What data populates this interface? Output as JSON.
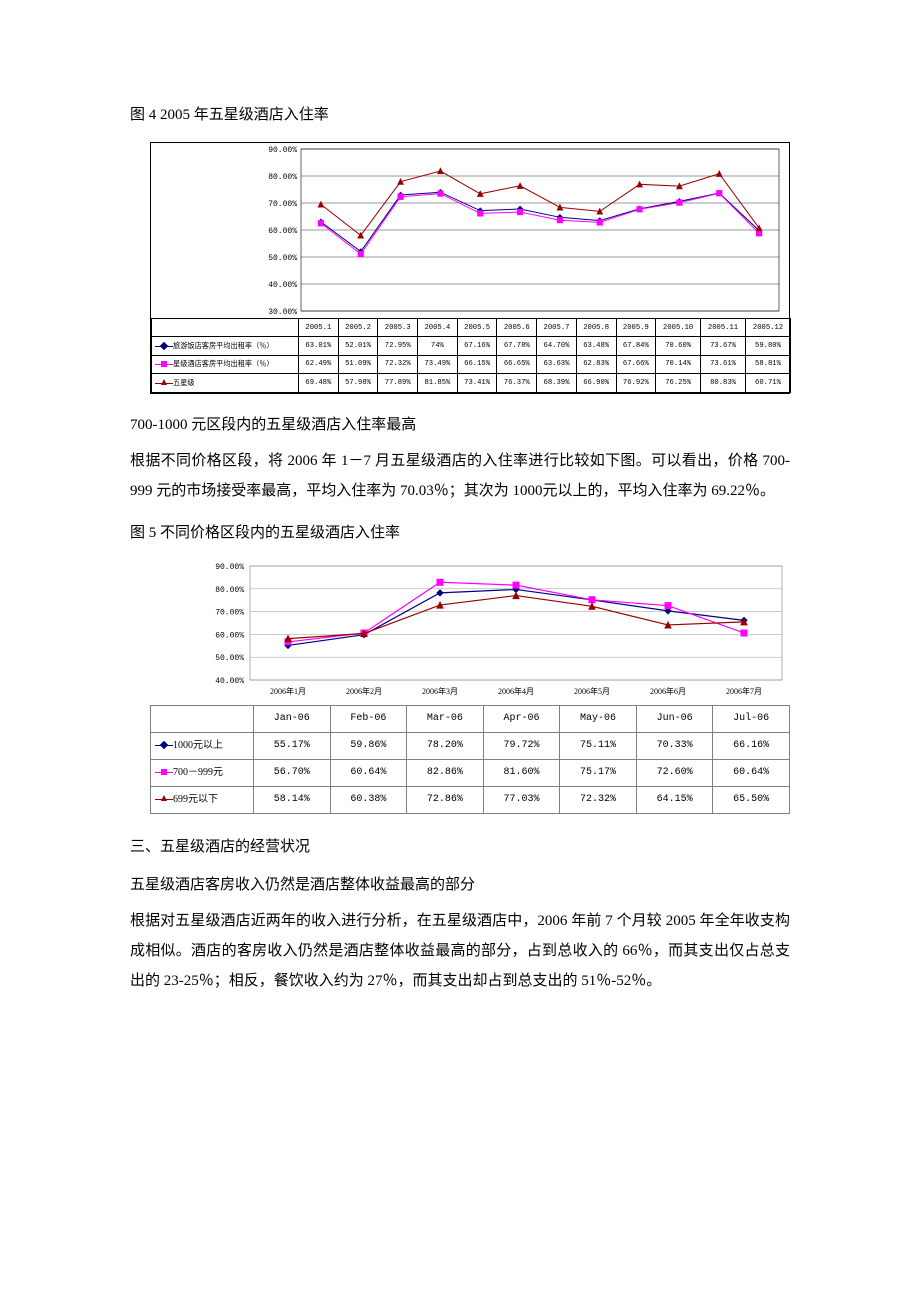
{
  "fig4": {
    "title": "图 4 2005 年五星级酒店入住率",
    "y_axis": {
      "min": 30,
      "max": 90,
      "step": 10,
      "labels": [
        "30.00%",
        "40.00%",
        "50.00%",
        "60.00%",
        "70.00%",
        "80.00%",
        "90.00%"
      ]
    },
    "x_labels": [
      "2005.1",
      "2005.2",
      "2005.3",
      "2005.4",
      "2005.5",
      "2005.6",
      "2005.7",
      "2005.8",
      "2005.9",
      "2005.10",
      "2005.11",
      "2005.12"
    ],
    "grid_color": "#000000",
    "bg_color": "#ffffff",
    "series": [
      {
        "name": "旅游饭店客房平均出租率（％）",
        "color": "#000080",
        "marker": "diamond",
        "values": [
          63.01,
          52.01,
          72.95,
          74.0,
          67.16,
          67.78,
          64.7,
          63.48,
          67.84,
          70.6,
          73.67,
          59.8
        ],
        "display": [
          "63.01%",
          "52.01%",
          "72.95%",
          "74%",
          "67.16%",
          "67.78%",
          "64.70%",
          "63.48%",
          "67.84%",
          "70.60%",
          "73.67%",
          "59.80%"
        ]
      },
      {
        "name": "星级酒店客房平均出租率（％）",
        "color": "#ff00ff",
        "marker": "square",
        "values": [
          62.49,
          51.09,
          72.32,
          73.49,
          66.15,
          66.65,
          63.63,
          62.83,
          67.66,
          70.14,
          73.61,
          58.81
        ],
        "display": [
          "62.49%",
          "51.09%",
          "72.32%",
          "73.49%",
          "66.15%",
          "66.65%",
          "63.63%",
          "62.83%",
          "67.66%",
          "70.14%",
          "73.61%",
          "58.81%"
        ]
      },
      {
        "name": "五星级",
        "color": "#990000",
        "marker": "triangle",
        "values": [
          69.48,
          57.98,
          77.89,
          81.85,
          73.41,
          76.37,
          68.39,
          66.9,
          76.92,
          76.25,
          80.83,
          60.71
        ],
        "display": [
          "69.48%",
          "57.98%",
          "77.89%",
          "81.85%",
          "73.41%",
          "76.37%",
          "68.39%",
          "66.90%",
          "76.92%",
          "76.25%",
          "80.83%",
          "60.71%"
        ]
      }
    ]
  },
  "text_block_1": {
    "heading": "700-1000 元区段内的五星级酒店入住率最高",
    "body": "根据不同价格区段，将 2006 年 1－7 月五星级酒店的入住率进行比较如下图。可以看出，价格 700-999 元的市场接受率最高，平均入住率为 70.03％；其次为 1000元以上的，平均入住率为 69.22％。"
  },
  "fig5": {
    "title": "图 5 不同价格区段内的五星级酒店入住率",
    "y_axis": {
      "min": 40,
      "max": 90,
      "step": 10,
      "labels": [
        "40.00%",
        "50.00%",
        "60.00%",
        "70.00%",
        "80.00%",
        "90.00%"
      ]
    },
    "x_labels_cn": [
      "2006年1月",
      "2006年2月",
      "2006年3月",
      "2006年4月",
      "2006年5月",
      "2006年6月",
      "2006年7月"
    ],
    "x_labels_en": [
      "Jan-06",
      "Feb-06",
      "Mar-06",
      "Apr-06",
      "May-06",
      "Jun-06",
      "Jul-06"
    ],
    "grid_color": "#808080",
    "bg_color": "#ffffff",
    "series": [
      {
        "name": "1000元以上",
        "color": "#000080",
        "marker": "diamond",
        "values": [
          55.17,
          59.86,
          78.2,
          79.72,
          75.11,
          70.33,
          66.16
        ],
        "display": [
          "55.17%",
          "59.86%",
          "78.20%",
          "79.72%",
          "75.11%",
          "70.33%",
          "66.16%"
        ]
      },
      {
        "name": "700－999元",
        "color": "#ff00ff",
        "marker": "square",
        "values": [
          56.7,
          60.64,
          82.86,
          81.6,
          75.17,
          72.6,
          60.64
        ],
        "display": [
          "56.70%",
          "60.64%",
          "82.86%",
          "81.60%",
          "75.17%",
          "72.60%",
          "60.64%"
        ]
      },
      {
        "name": "699元以下",
        "color": "#990000",
        "marker": "triangle",
        "values": [
          58.14,
          60.38,
          72.86,
          77.03,
          72.32,
          64.15,
          65.5
        ],
        "display": [
          "58.14%",
          "60.38%",
          "72.86%",
          "77.03%",
          "72.32%",
          "64.15%",
          "65.50%"
        ]
      }
    ]
  },
  "section3": {
    "heading": "三、五星级酒店的经营状况",
    "sub": "五星级酒店客房收入仍然是酒店整体收益最高的部分",
    "body": "根据对五星级酒店近两年的收入进行分析，在五星级酒店中，2006 年前 7 个月较 2005 年全年收支构成相似。酒店的客房收入仍然是酒店整体收益最高的部分，占到总收入的 66％，而其支出仅占总支出的 23-25％；相反，餐饮收入约为 27％，而其支出却占到总支出的 51％-52％。"
  }
}
